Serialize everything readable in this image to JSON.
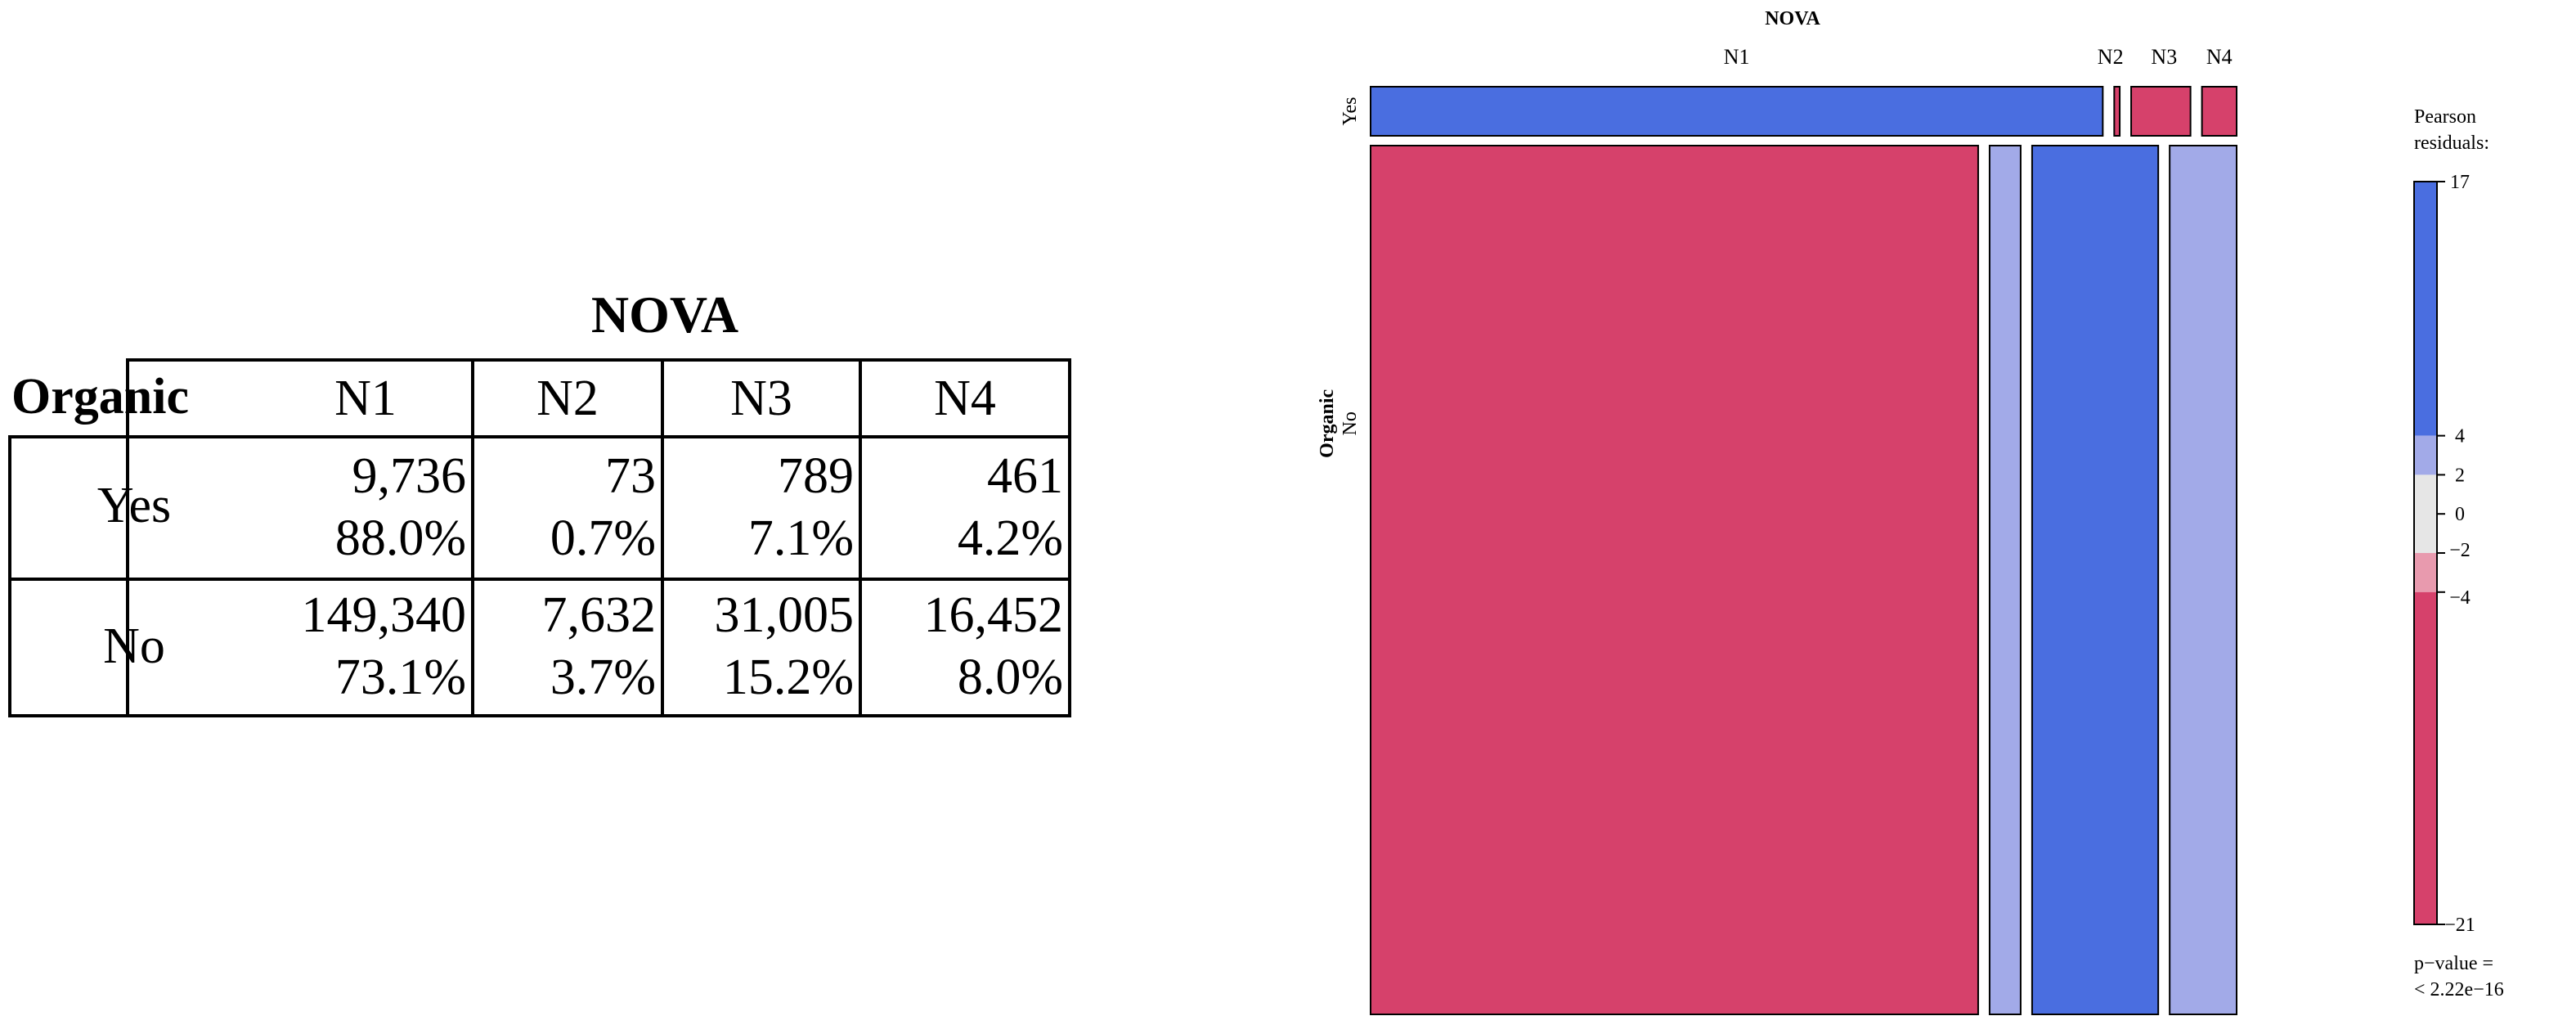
{
  "table": {
    "column_variable": "NOVA",
    "row_variable": "Organic",
    "columns": [
      "N1",
      "N2",
      "N3",
      "N4"
    ],
    "rows": [
      {
        "label": "Yes",
        "counts": [
          "9,736",
          "73",
          "789",
          "461"
        ],
        "percents": [
          "88.0%",
          "0.7%",
          "7.1%",
          "4.2%"
        ]
      },
      {
        "label": "No",
        "counts": [
          "149,340",
          "7,632",
          "31,005",
          "16,452"
        ],
        "percents": [
          "73.1%",
          "3.7%",
          "15.2%",
          "8.0%"
        ]
      }
    ]
  },
  "chart_data": {
    "type": "mosaic",
    "title": "NOVA",
    "x_variable": "NOVA",
    "y_variable": "Organic",
    "x_categories": [
      "N1",
      "N2",
      "N3",
      "N4"
    ],
    "y_categories": [
      "Yes",
      "No"
    ],
    "counts": {
      "Yes": [
        9736,
        73,
        789,
        461
      ],
      "No": [
        149340,
        7632,
        31005,
        16452
      ]
    },
    "cell_colors": {
      "Yes": [
        "#4a6ee0",
        "#d6416b",
        "#d6416b",
        "#d6416b"
      ],
      "No": [
        "#d6416b",
        "#a2aae8",
        "#4a6ee0",
        "#a2aae8"
      ]
    },
    "legend": {
      "title_line1": "Pearson",
      "title_line2": "residuals:",
      "placement": "right",
      "max": 17,
      "min": -21,
      "ticks": [
        "17",
        "4",
        "2",
        "0",
        "−2",
        "−4",
        "−21"
      ],
      "tick_values": [
        17,
        4,
        2,
        0,
        -2,
        -4,
        -21
      ],
      "bands": [
        {
          "from": 17,
          "to": 4,
          "color": "#4a6ee0"
        },
        {
          "from": 4,
          "to": 2,
          "color": "#a2aae8"
        },
        {
          "from": 2,
          "to": -2,
          "color": "#e6e6e6"
        },
        {
          "from": -2,
          "to": -4,
          "color": "#e89aae"
        },
        {
          "from": -4,
          "to": -21,
          "color": "#d6416b"
        }
      ],
      "pvalue_line1": "p−value =",
      "pvalue_line2": "< 2.22e−16"
    }
  }
}
